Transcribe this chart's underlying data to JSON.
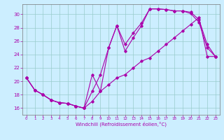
{
  "xlabel": "Windchill (Refroidissement éolien,°C)",
  "bg_color": "#cceeff",
  "line_color": "#aa00aa",
  "grid_color": "#99cccc",
  "xlim": [
    -0.5,
    23.5
  ],
  "ylim": [
    15.0,
    31.5
  ],
  "xticks": [
    0,
    1,
    2,
    3,
    4,
    5,
    6,
    7,
    8,
    9,
    10,
    11,
    12,
    13,
    14,
    15,
    16,
    17,
    18,
    19,
    20,
    21,
    22,
    23
  ],
  "yticks": [
    16,
    18,
    20,
    22,
    24,
    26,
    28,
    30
  ],
  "line1_x": [
    0,
    1,
    2,
    3,
    4,
    5,
    6,
    7,
    8,
    9,
    10,
    11,
    12,
    13,
    14,
    15,
    16,
    17,
    18,
    19,
    20,
    21,
    22,
    23
  ],
  "line1_y": [
    20.5,
    18.7,
    18.0,
    17.2,
    16.8,
    16.7,
    16.3,
    16.0,
    21.0,
    18.5,
    25.0,
    28.3,
    24.5,
    26.5,
    28.3,
    30.8,
    30.8,
    30.7,
    30.5,
    30.5,
    30.3,
    29.2,
    25.5,
    23.7
  ],
  "line2_x": [
    0,
    1,
    2,
    3,
    4,
    5,
    6,
    7,
    8,
    9,
    10,
    11,
    12,
    13,
    14,
    15,
    16,
    17,
    18,
    19,
    20,
    21,
    22,
    23
  ],
  "line2_y": [
    20.5,
    18.7,
    18.0,
    17.2,
    16.8,
    16.7,
    16.3,
    16.0,
    18.5,
    21.0,
    25.0,
    28.3,
    25.5,
    27.2,
    28.7,
    30.8,
    30.8,
    30.7,
    30.5,
    30.5,
    30.1,
    28.8,
    25.0,
    23.7
  ],
  "line3_x": [
    0,
    1,
    2,
    3,
    4,
    5,
    6,
    7,
    8,
    9,
    10,
    11,
    12,
    13,
    14,
    15,
    16,
    17,
    18,
    19,
    20,
    21,
    22,
    23
  ],
  "line3_y": [
    20.5,
    18.7,
    18.0,
    17.2,
    16.8,
    16.7,
    16.3,
    16.0,
    17.0,
    18.5,
    19.5,
    20.5,
    21.0,
    22.0,
    23.0,
    23.5,
    24.5,
    25.5,
    26.5,
    27.5,
    28.5,
    29.5,
    23.7,
    23.7
  ]
}
